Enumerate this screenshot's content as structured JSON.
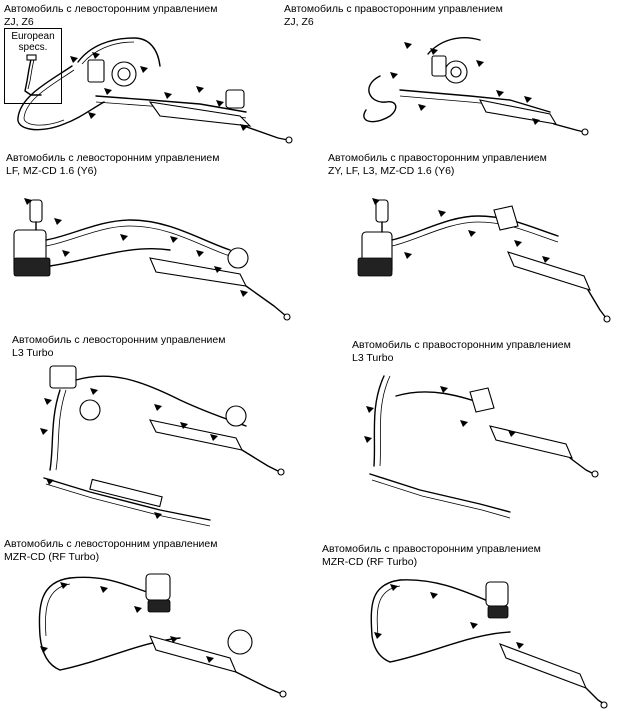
{
  "panels": [
    {
      "line1": "Автомобиль с левосторонним управлением",
      "line2": "ZJ, Z6",
      "inset": {
        "line1": "European",
        "line2": "specs."
      }
    },
    {
      "line1": "Автомобиль с правосторонним управлением",
      "line2": "ZJ, Z6"
    },
    {
      "line1": "Автомобиль с левосторонним управлением",
      "line2": "LF, MZ-CD 1.6 (Y6)"
    },
    {
      "line1": "Автомобиль с правосторонним управлением",
      "line2": "ZY, LF, L3, MZ-CD 1.6 (Y6)"
    },
    {
      "line1": "Автомобиль с левосторонним управлением",
      "line2": "L3 Turbo"
    },
    {
      "line1": "Автомобиль с правосторонним управлением",
      "line2": "L3 Turbo"
    },
    {
      "line1": "Автомобиль с левосторонним управлением",
      "line2": "MZR-CD  (RF Turbo)"
    },
    {
      "line1": "Автомобиль с правосторонним управлением",
      "line2": "MZR-CD  (RF Turbo)"
    }
  ]
}
